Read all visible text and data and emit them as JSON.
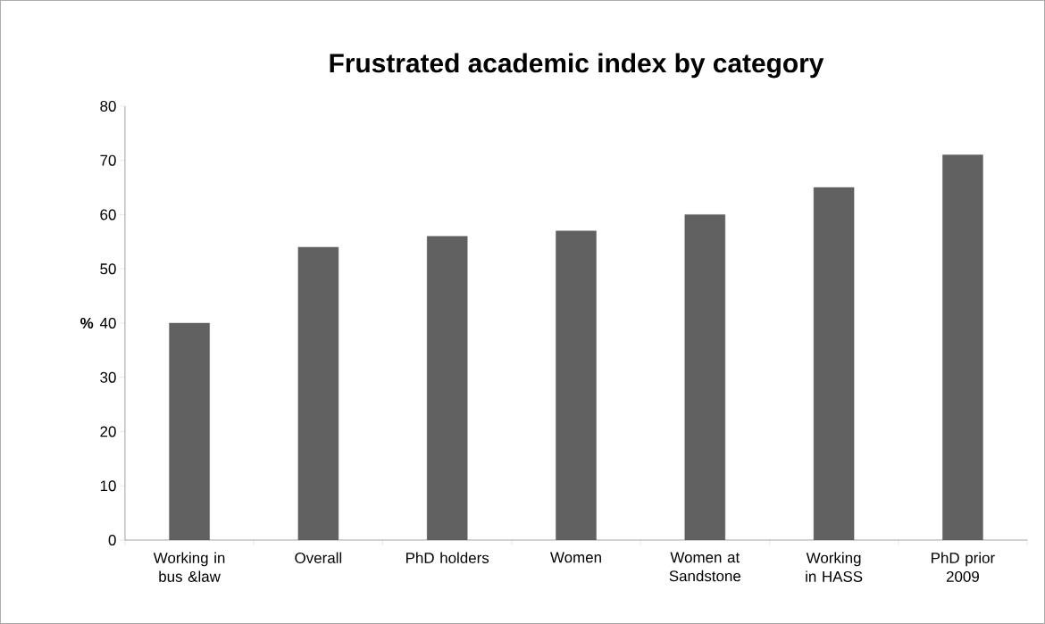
{
  "chart_data": {
    "type": "bar",
    "title": "Frustrated academic index by category",
    "ylabel": "%",
    "categories": [
      "Working in bus &law",
      "Overall",
      "PhD holders",
      "Women",
      "Women at Sandstone",
      "Working in HASS",
      "PhD prior 2009"
    ],
    "values": [
      40,
      54,
      56,
      57,
      60,
      65,
      71
    ],
    "color": "#616161",
    "ylim": [
      0,
      80
    ],
    "yticks": [
      0,
      10,
      20,
      30,
      40,
      50,
      60,
      70,
      80
    ]
  }
}
